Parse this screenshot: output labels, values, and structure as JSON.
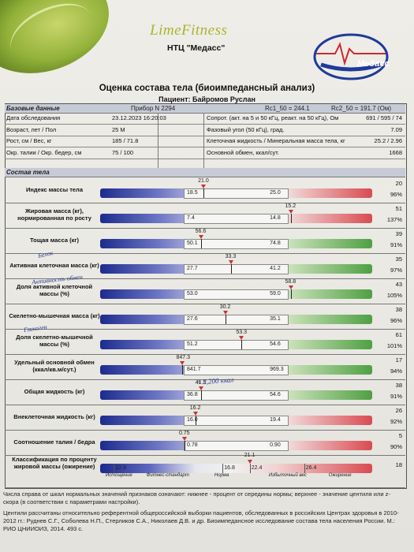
{
  "brand": "LimeFitness",
  "center": "НТЦ \"Медасс\"",
  "title": "Оценка состава тела (биоимпедансный анализ)",
  "patient_line": "Пациент: Байромов Руслан",
  "base_section": "Базовые данные",
  "device": "Прибор N 2294",
  "rc1": "Rc1_50 = 244.1",
  "rc2": "Rc2_50 = 191.7  (Ом)",
  "base_rows": [
    {
      "l1": "Дата обследования",
      "v1": "23.12.2023 16:20:03",
      "l2": "Сопрот. (акт. на 5 и 50 кГц, реакт. на 50 кГц), Ом",
      "v2": "691 / 595 / 74"
    },
    {
      "l1": "Возраст, лет / Пол",
      "v1": "25 M",
      "l2": "Фазовый угол (50 кГц), град.",
      "v2": "7.09"
    },
    {
      "l1": "Рост, см / Вес, кг",
      "v1": "185 / 71.8",
      "l2": "Клеточная жидкость / Минеральная масса тела, кг",
      "v2": "25.2 / 2.96"
    },
    {
      "l1": "Окр. талии / Окр. бедер, см",
      "v1": "75 / 100",
      "l2": "Основной обмен, ккал/сут.",
      "v2": "1668"
    }
  ],
  "composition_section": "Состав тела",
  "metrics": [
    {
      "label": "Индекс массы тела",
      "value": "21.0",
      "low": "18.5",
      "high": "25.0",
      "pct": "96%",
      "pos": 0.38,
      "rv": "20"
    },
    {
      "label": "Жировая масса (кг), нормированная по росту",
      "value": "15.2",
      "low": "7.4",
      "high": "14.8",
      "pct": "137%",
      "pos": 0.7,
      "rv": "51"
    },
    {
      "label": "Тощая масса (кг)",
      "value": "56.6",
      "low": "50.1",
      "high": "74.8",
      "pct": "91%",
      "pos": 0.37,
      "rv": "39"
    },
    {
      "label": "Активная клеточная масса (кг)",
      "value": "33.3",
      "low": "27.7",
      "high": "41.2",
      "pct": "97%",
      "pos": 0.48,
      "rv": "35"
    },
    {
      "label": "Доля активной клеточной массы (%)",
      "value": "58.8",
      "low": "53.0",
      "high": "59.0",
      "pct": "105%",
      "pos": 0.7,
      "rv": "43"
    },
    {
      "label": "Скелетно-мышечная масса (кг)",
      "value": "30.2",
      "low": "27.6",
      "high": "35.1",
      "pct": "96%",
      "pos": 0.46,
      "rv": "38"
    },
    {
      "label": "Доля скелетно-мышечной массы (%)",
      "value": "53.3",
      "low": "51.2",
      "high": "54.6",
      "pct": "101%",
      "pos": 0.52,
      "rv": "61"
    },
    {
      "label": "Удельный основной обмен (ккал/кв.м/сут.)",
      "value": "847.3",
      "low": "841.7",
      "high": "969.3",
      "pct": "94%",
      "pos": 0.3,
      "rv": "17"
    },
    {
      "label": "Общая жидкость (кг)",
      "value": "41.5",
      "low": "36.8",
      "high": "54.6",
      "pct": "91%",
      "pos": 0.37,
      "rv": "38"
    },
    {
      "label": "Внеклеточная жидкость (кг)",
      "value": "16.2",
      "low": "16.0",
      "high": "19.4",
      "pct": "92%",
      "pos": 0.35,
      "rv": "26"
    },
    {
      "label": "Соотношение талия / бедра",
      "value": "0.75",
      "low": "0.78",
      "high": "0.90",
      "pct": "90%",
      "pos": 0.31,
      "rv": "5"
    }
  ],
  "classification": {
    "label": "Классификация по проценту жировой массы (ожирение)",
    "value": "21.1",
    "rv": "18",
    "ticks": [
      "12.9",
      "16.8",
      "22.4",
      "26.4"
    ],
    "categories": [
      "Истощение",
      "Фитнес-стандарт",
      "Норма",
      "Избыточный вес",
      "Ожирение"
    ]
  },
  "footnote1": "Числа справа от шкал нормальных значений признаков означают: нижнее - процент от середины нормы; верхнее - значение центиля или z-скора (в соответствии с параметрами настройки).",
  "footnote2": "Центили рассчитаны относительно референтной общероссийской выборки пациентов, обследованных в российских Центрах здоровья в 2010-2012 гг.: Руднев С.Г., Соболева Н.П., Стерликов С.А., Николаев Д.В. и др. Биоимпедансное исследование состава тела населения России. М.: РИО ЦНИИОИЗ, 2014. 493 с.",
  "handwriting": [
    "Белок",
    "Активность обмен",
    "Гликоген",
    "≈ 2,200 ккал"
  ]
}
